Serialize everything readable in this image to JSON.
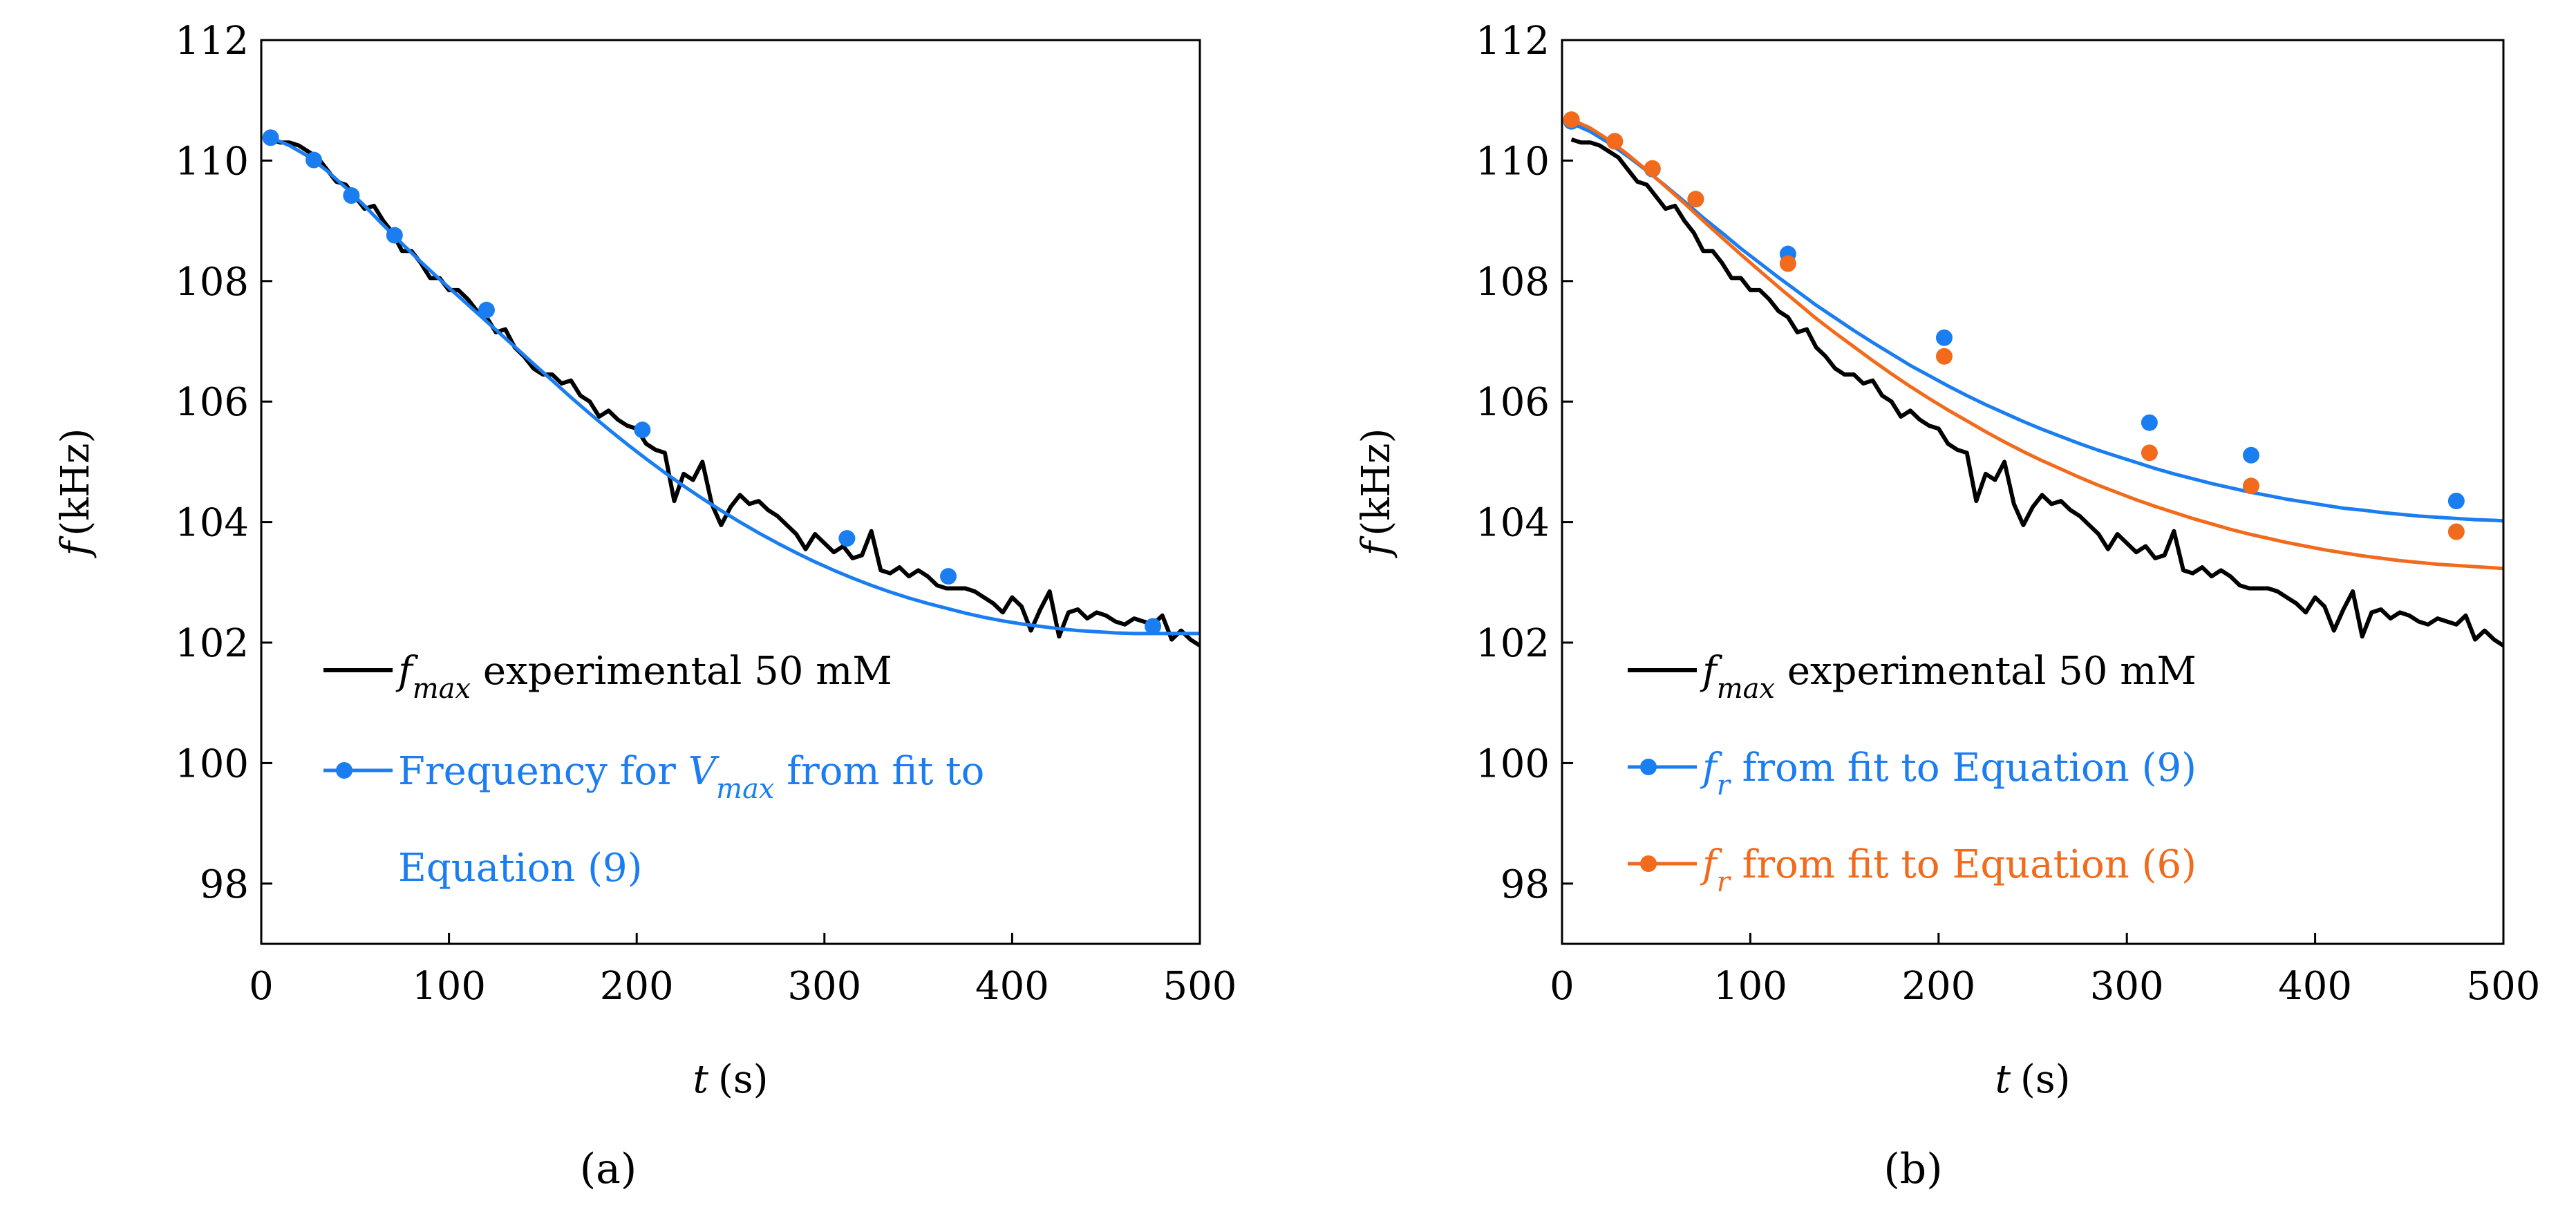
{
  "chart_data": [
    {
      "panel_label": "(a)",
      "type": "line",
      "xlabel": {
        "var": "t",
        "unit": "(s)"
      },
      "ylabel": {
        "var": "f",
        "unit": "(kHz)"
      },
      "xlim": [
        0,
        500
      ],
      "ylim": [
        97,
        112
      ],
      "xticks": [
        0,
        100,
        200,
        300,
        400,
        500
      ],
      "yticks": [
        98,
        100,
        102,
        104,
        106,
        108,
        110,
        112
      ],
      "grid": false,
      "legend_position": "lower-left",
      "series": [
        {
          "name": "f_max experimental 50 mM",
          "legend": {
            "main": "f",
            "sub": "max",
            "text": " experimental 50 mM"
          },
          "color": "#000000",
          "marker": "none",
          "x": [
            5,
            10,
            15,
            20,
            25,
            30,
            35,
            40,
            45,
            50,
            55,
            60,
            65,
            70,
            75,
            80,
            85,
            90,
            95,
            100,
            105,
            110,
            115,
            120,
            125,
            130,
            135,
            140,
            145,
            150,
            155,
            160,
            165,
            170,
            175,
            180,
            185,
            190,
            195,
            200,
            205,
            210,
            215,
            220,
            225,
            230,
            235,
            240,
            245,
            250,
            255,
            260,
            265,
            270,
            275,
            280,
            285,
            290,
            295,
            300,
            305,
            310,
            315,
            320,
            325,
            330,
            335,
            340,
            345,
            350,
            355,
            360,
            365,
            370,
            375,
            380,
            385,
            390,
            395,
            400,
            405,
            410,
            415,
            420,
            425,
            430,
            435,
            440,
            445,
            450,
            455,
            460,
            465,
            470,
            475,
            480,
            485,
            490,
            495,
            500
          ],
          "y": [
            110.35,
            110.3,
            110.3,
            110.25,
            110.15,
            110.05,
            109.85,
            109.65,
            109.6,
            109.4,
            109.2,
            109.25,
            109.0,
            108.8,
            108.5,
            108.5,
            108.3,
            108.05,
            108.05,
            107.85,
            107.85,
            107.7,
            107.5,
            107.4,
            107.15,
            107.2,
            106.9,
            106.75,
            106.55,
            106.45,
            106.45,
            106.3,
            106.35,
            106.1,
            106.0,
            105.75,
            105.85,
            105.7,
            105.6,
            105.55,
            105.3,
            105.2,
            105.15,
            104.35,
            104.8,
            104.7,
            105.0,
            104.3,
            103.95,
            104.25,
            104.45,
            104.3,
            104.35,
            104.2,
            104.1,
            103.95,
            103.8,
            103.55,
            103.8,
            103.65,
            103.5,
            103.6,
            103.4,
            103.45,
            103.85,
            103.2,
            103.15,
            103.25,
            103.1,
            103.2,
            103.1,
            102.95,
            102.9,
            102.9,
            102.9,
            102.85,
            102.75,
            102.65,
            102.5,
            102.75,
            102.6,
            102.2,
            102.55,
            102.85,
            102.1,
            102.5,
            102.55,
            102.4,
            102.5,
            102.45,
            102.35,
            102.3,
            102.4,
            102.35,
            102.3,
            102.45,
            102.05,
            102.2,
            102.05,
            101.95
          ]
        },
        {
          "name": "Frequency for V_max from fit to Equation (9)",
          "legend": {
            "line1_pre": "Frequency for ",
            "main": "V",
            "sub": "max",
            "line1_post": " from fit to",
            "line2": "Equation (9)"
          },
          "color": "#1a7df0",
          "marker": "circle",
          "x": [
            5,
            15,
            25,
            35,
            45,
            55,
            65,
            75,
            85,
            95,
            105,
            115,
            125,
            135,
            145,
            155,
            165,
            175,
            185,
            195,
            205,
            215,
            225,
            235,
            245,
            255,
            265,
            275,
            285,
            295,
            305,
            315,
            325,
            335,
            345,
            355,
            365,
            375,
            385,
            395,
            405,
            415,
            425,
            435,
            445,
            455,
            465,
            475,
            485,
            495,
            500
          ],
          "y": [
            110.38,
            110.25,
            110.07,
            109.83,
            109.55,
            109.25,
            108.93,
            108.62,
            108.32,
            108.03,
            107.75,
            107.47,
            107.19,
            106.91,
            106.63,
            106.35,
            106.07,
            105.8,
            105.54,
            105.29,
            105.05,
            104.82,
            104.6,
            104.39,
            104.19,
            104.0,
            103.82,
            103.65,
            103.49,
            103.34,
            103.2,
            103.07,
            102.95,
            102.84,
            102.74,
            102.65,
            102.57,
            102.49,
            102.42,
            102.36,
            102.31,
            102.27,
            102.23,
            102.2,
            102.18,
            102.16,
            102.15,
            102.15,
            102.15,
            102.15,
            102.15
          ],
          "marker_points": [
            [
              5,
              110.38
            ],
            [
              28,
              110.01
            ],
            [
              48,
              109.42
            ],
            [
              71,
              108.76
            ],
            [
              120,
              107.52
            ],
            [
              203,
              105.53
            ],
            [
              312,
              103.73
            ],
            [
              366,
              103.1
            ],
            [
              475,
              102.27
            ]
          ]
        }
      ]
    },
    {
      "panel_label": "(b)",
      "type": "line",
      "xlabel": {
        "var": "t",
        "unit": "(s)"
      },
      "ylabel": {
        "var": "f",
        "unit": "(kHz)"
      },
      "xlim": [
        0,
        500
      ],
      "ylim": [
        97,
        112
      ],
      "xticks": [
        0,
        100,
        200,
        300,
        400,
        500
      ],
      "yticks": [
        98,
        100,
        102,
        104,
        106,
        108,
        110,
        112
      ],
      "grid": false,
      "legend_position": "lower-left",
      "series": [
        {
          "name": "f_max experimental 50 mM",
          "legend": {
            "main": "f",
            "sub": "max",
            "text": " experimental 50 mM"
          },
          "color": "#000000",
          "marker": "none",
          "x": [
            5,
            10,
            15,
            20,
            25,
            30,
            35,
            40,
            45,
            50,
            55,
            60,
            65,
            70,
            75,
            80,
            85,
            90,
            95,
            100,
            105,
            110,
            115,
            120,
            125,
            130,
            135,
            140,
            145,
            150,
            155,
            160,
            165,
            170,
            175,
            180,
            185,
            190,
            195,
            200,
            205,
            210,
            215,
            220,
            225,
            230,
            235,
            240,
            245,
            250,
            255,
            260,
            265,
            270,
            275,
            280,
            285,
            290,
            295,
            300,
            305,
            310,
            315,
            320,
            325,
            330,
            335,
            340,
            345,
            350,
            355,
            360,
            365,
            370,
            375,
            380,
            385,
            390,
            395,
            400,
            405,
            410,
            415,
            420,
            425,
            430,
            435,
            440,
            445,
            450,
            455,
            460,
            465,
            470,
            475,
            480,
            485,
            490,
            495,
            500
          ],
          "y": [
            110.35,
            110.3,
            110.3,
            110.25,
            110.15,
            110.05,
            109.85,
            109.65,
            109.6,
            109.4,
            109.2,
            109.25,
            109.0,
            108.8,
            108.5,
            108.5,
            108.3,
            108.05,
            108.05,
            107.85,
            107.85,
            107.7,
            107.5,
            107.4,
            107.15,
            107.2,
            106.9,
            106.75,
            106.55,
            106.45,
            106.45,
            106.3,
            106.35,
            106.1,
            106.0,
            105.75,
            105.85,
            105.7,
            105.6,
            105.55,
            105.3,
            105.2,
            105.15,
            104.35,
            104.8,
            104.7,
            105.0,
            104.3,
            103.95,
            104.25,
            104.45,
            104.3,
            104.35,
            104.2,
            104.1,
            103.95,
            103.8,
            103.55,
            103.8,
            103.65,
            103.5,
            103.6,
            103.4,
            103.45,
            103.85,
            103.2,
            103.15,
            103.25,
            103.1,
            103.2,
            103.1,
            102.95,
            102.9,
            102.9,
            102.9,
            102.85,
            102.75,
            102.65,
            102.5,
            102.75,
            102.6,
            102.2,
            102.55,
            102.85,
            102.1,
            102.5,
            102.55,
            102.4,
            102.5,
            102.45,
            102.35,
            102.3,
            102.4,
            102.35,
            102.3,
            102.45,
            102.05,
            102.2,
            102.05,
            101.95
          ]
        },
        {
          "name": "f_r from fit to Equation (9)",
          "legend": {
            "main": "f",
            "sub": "r",
            "text": " from fit to Equation (9)"
          },
          "color": "#1a7df0",
          "marker": "circle",
          "x": [
            5,
            15,
            25,
            35,
            45,
            55,
            65,
            75,
            85,
            95,
            105,
            115,
            125,
            135,
            145,
            155,
            165,
            175,
            185,
            195,
            205,
            215,
            225,
            235,
            245,
            255,
            265,
            275,
            285,
            295,
            305,
            315,
            325,
            335,
            345,
            355,
            365,
            375,
            385,
            395,
            405,
            415,
            425,
            435,
            445,
            455,
            465,
            475,
            485,
            495,
            500
          ],
          "y": [
            110.62,
            110.48,
            110.29,
            110.07,
            109.83,
            109.58,
            109.32,
            109.05,
            108.8,
            108.54,
            108.3,
            108.06,
            107.83,
            107.6,
            107.39,
            107.18,
            106.98,
            106.79,
            106.6,
            106.43,
            106.26,
            106.1,
            105.95,
            105.81,
            105.67,
            105.54,
            105.42,
            105.3,
            105.19,
            105.09,
            104.99,
            104.89,
            104.8,
            104.72,
            104.64,
            104.57,
            104.5,
            104.44,
            104.38,
            104.33,
            104.28,
            104.23,
            104.2,
            104.16,
            104.13,
            104.1,
            104.08,
            104.06,
            104.04,
            104.03,
            104.02
          ],
          "marker_points": [
            [
              5,
              110.65
            ],
            [
              28,
              110.32
            ],
            [
              48,
              109.86
            ],
            [
              71,
              109.36
            ],
            [
              120,
              108.45
            ],
            [
              203,
              107.06
            ],
            [
              312,
              105.65
            ],
            [
              366,
              105.11
            ],
            [
              475,
              104.35
            ]
          ]
        },
        {
          "name": "f_r from fit to Equation (6)",
          "legend": {
            "main": "f",
            "sub": "r",
            "text": " from fit to Equation (6)"
          },
          "color": "#f26a1b",
          "marker": "circle",
          "x": [
            5,
            15,
            25,
            35,
            45,
            55,
            65,
            75,
            85,
            95,
            105,
            115,
            125,
            135,
            145,
            155,
            165,
            175,
            185,
            195,
            205,
            215,
            225,
            235,
            245,
            255,
            265,
            275,
            285,
            295,
            305,
            315,
            325,
            335,
            345,
            355,
            365,
            375,
            385,
            395,
            405,
            415,
            425,
            435,
            445,
            455,
            465,
            475,
            485,
            495,
            500
          ],
          "y": [
            110.68,
            110.54,
            110.34,
            110.1,
            109.84,
            109.57,
            109.29,
            109.0,
            108.72,
            108.44,
            108.17,
            107.9,
            107.64,
            107.38,
            107.14,
            106.91,
            106.68,
            106.46,
            106.25,
            106.05,
            105.86,
            105.68,
            105.5,
            105.33,
            105.17,
            105.02,
            104.88,
            104.74,
            104.61,
            104.49,
            104.37,
            104.26,
            104.16,
            104.06,
            103.97,
            103.88,
            103.8,
            103.73,
            103.66,
            103.6,
            103.54,
            103.49,
            103.44,
            103.4,
            103.36,
            103.33,
            103.3,
            103.28,
            103.26,
            103.24,
            103.23
          ],
          "marker_points": [
            [
              5,
              110.68
            ],
            [
              28,
              110.32
            ],
            [
              48,
              109.87
            ],
            [
              71,
              109.36
            ],
            [
              120,
              108.29
            ],
            [
              203,
              106.75
            ],
            [
              312,
              105.15
            ],
            [
              366,
              104.6
            ],
            [
              475,
              103.84
            ]
          ]
        }
      ]
    }
  ]
}
